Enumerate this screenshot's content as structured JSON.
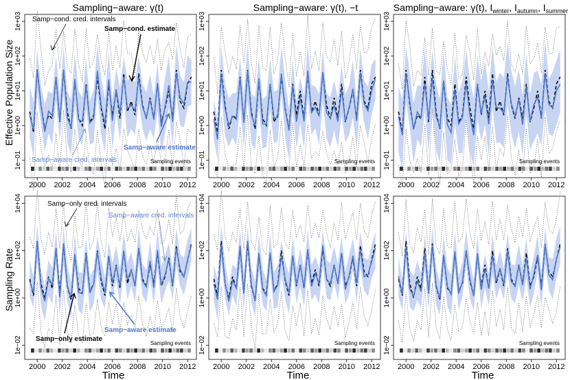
{
  "titles": [
    {
      "text": "Sampling−aware: γ(t)"
    },
    {
      "text": "Sampling−aware: γ(t), −t"
    },
    {
      "text": "Sampling−aware: γ(t), I",
      "parts": [
        "Sampling−aware: γ(t), I",
        "winter",
        ", I",
        "autumn",
        ", I",
        "summer"
      ]
    }
  ],
  "row_ylabels": [
    "Effective Population Size",
    "Sampling Rate"
  ],
  "xlabel": "Time",
  "x_ticks": [
    "2000",
    "2002",
    "2004",
    "2006",
    "2008",
    "2010",
    "2012"
  ],
  "y_ticks_top": [
    "1e−01",
    "1e+00",
    "1e+01",
    "1e+02",
    "1e+03"
  ],
  "y_ticks_bottom": [
    "1e−02",
    "1e+00",
    "1e+02",
    "1e+04"
  ],
  "sampling_events_label": "Sampling events",
  "annotations": {
    "samp_cond_intervals": "Samp−cond. cred. intervals",
    "samp_cond_estimate": "Samp−cond. estimate",
    "samp_aware_intervals_top": "Samp−aware cred. intervals",
    "samp_aware_estimate_top": "Samp−aware estimate",
    "samp_only_intervals": "Samp−only cred. intervals",
    "samp_aware_intervals_bottom": "Samp−aware cred. intervals",
    "samp_only_estimate": "Samp−only estimate",
    "samp_aware_estimate_bottom": "Samp−aware estimate"
  },
  "colors": {
    "aware": "#4f78c8",
    "aware_band": "#c7d5f3",
    "aware_text": "#5a82d0",
    "black": "#000000"
  },
  "chart_data": [
    {
      "row": "effective-population-size",
      "panel": 1,
      "type": "line",
      "x_range": [
        1999.0,
        2012.7
      ],
      "ylim_log10": [
        -1.5,
        3.2
      ],
      "y_scale": "log"
    },
    {
      "row": "effective-population-size",
      "panel": 2,
      "type": "line",
      "x_range": [
        1999.0,
        2012.7
      ],
      "ylim_log10": [
        -1.5,
        3.2
      ],
      "y_scale": "log"
    },
    {
      "row": "effective-population-size",
      "panel": 3,
      "type": "line",
      "x_range": [
        1999.0,
        2012.7
      ],
      "ylim_log10": [
        -1.5,
        3.2
      ],
      "y_scale": "log"
    },
    {
      "row": "sampling-rate",
      "panel": 1,
      "type": "line",
      "x_range": [
        1999.0,
        2012.7
      ],
      "ylim_log10": [
        -2.6,
        4.3
      ],
      "y_scale": "log"
    },
    {
      "row": "sampling-rate",
      "panel": 2,
      "type": "line",
      "x_range": [
        1999.0,
        2012.7
      ],
      "ylim_log10": [
        -2.6,
        4.3
      ],
      "y_scale": "log"
    },
    {
      "row": "sampling-rate",
      "panel": 3,
      "type": "line",
      "x_range": [
        1999.0,
        2012.7
      ],
      "ylim_log10": [
        -2.6,
        4.3
      ],
      "y_scale": "log"
    }
  ],
  "seasonal_curve": {
    "x": [
      1999.4,
      1999.7,
      2000.0,
      2000.3,
      2000.6,
      2000.9,
      2001.2,
      2001.5,
      2001.8,
      2002.1,
      2002.4,
      2002.7,
      2003.0,
      2003.3,
      2003.6,
      2003.9,
      2004.2,
      2004.5,
      2004.8,
      2005.1,
      2005.4,
      2005.7,
      2006.0,
      2006.3,
      2006.6,
      2006.9,
      2007.2,
      2007.5,
      2007.8,
      2008.1,
      2008.4,
      2008.7,
      2009.0,
      2009.3,
      2009.6,
      2009.9,
      2010.2,
      2010.5,
      2010.8,
      2011.1,
      2011.4,
      2011.7,
      2012.0,
      2012.3
    ],
    "ne_log10": [
      0.4,
      -0.2,
      1.6,
      0.6,
      -0.1,
      0.3,
      0.2,
      1.4,
      0.1,
      1.6,
      0.4,
      -0.1,
      1.3,
      0.2,
      0.0,
      1.2,
      0.1,
      0.3,
      1.4,
      0.5,
      -0.1,
      1.2,
      0.3,
      1.0,
      0.2,
      1.5,
      0.4,
      0.7,
      0.3,
      1.5,
      0.6,
      0.2,
      0.8,
      0.2,
      1.2,
      0.1,
      0.5,
      1.0,
      0.2,
      1.6,
      0.7,
      0.5,
      1.2,
      1.4
    ],
    "rate_log10": [
      0.8,
      0.1,
      2.4,
      0.6,
      0.0,
      0.9,
      0.4,
      2.1,
      0.2,
      2.3,
      0.5,
      -0.1,
      1.8,
      0.4,
      0.2,
      1.9,
      0.3,
      0.6,
      2.0,
      0.7,
      0.1,
      1.8,
      0.5,
      1.4,
      0.4,
      2.0,
      0.6,
      1.2,
      0.5,
      2.1,
      0.8,
      0.5,
      1.4,
      0.6,
      1.9,
      0.5,
      0.9,
      1.7,
      0.5,
      2.2,
      1.1,
      0.9,
      1.6,
      2.3
    ]
  },
  "sampling_event_intensity": [
    0.9,
    0.1,
    0.5,
    0.2,
    0.7,
    0.3,
    0.1,
    0.8,
    0.4,
    0.6,
    0.2,
    0.9,
    0.3,
    0.1,
    0.5,
    0.7,
    0.2,
    0.4,
    0.9,
    0.3,
    0.6,
    0.1,
    0.8,
    0.5,
    0.2,
    0.7,
    0.4,
    0.9,
    0.3,
    0.6,
    0.2,
    0.8,
    0.5,
    0.1,
    0.7,
    0.4,
    0.9,
    0.3,
    0.6,
    0.8,
    0.2,
    0.5
  ]
}
